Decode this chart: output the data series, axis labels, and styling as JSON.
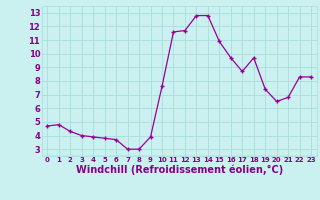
{
  "x": [
    0,
    1,
    2,
    3,
    4,
    5,
    6,
    7,
    8,
    9,
    10,
    11,
    12,
    13,
    14,
    15,
    16,
    17,
    18,
    19,
    20,
    21,
    22,
    23
  ],
  "y": [
    4.7,
    4.8,
    4.3,
    4.0,
    3.9,
    3.8,
    3.7,
    3.0,
    3.0,
    3.9,
    7.6,
    11.6,
    11.7,
    12.8,
    12.8,
    10.9,
    9.7,
    8.7,
    9.7,
    7.4,
    6.5,
    6.8,
    8.3,
    8.3
  ],
  "line_color": "#990099",
  "marker": "+",
  "bg_color": "#cbf0f0",
  "grid_color": "#aadddd",
  "xlabel": "Windchill (Refroidissement éolien,°C)",
  "xlabel_fontsize": 7,
  "label_color": "#880088",
  "xtick_labels": [
    "0",
    "1",
    "2",
    "3",
    "4",
    "5",
    "6",
    "7",
    "8",
    "9",
    "10",
    "11",
    "12",
    "13",
    "14",
    "15",
    "16",
    "17",
    "18",
    "19",
    "20",
    "21",
    "22",
    "23"
  ],
  "ytick_labels": [
    "3",
    "4",
    "5",
    "6",
    "7",
    "8",
    "9",
    "10",
    "11",
    "12",
    "13"
  ],
  "ytick_vals": [
    3,
    4,
    5,
    6,
    7,
    8,
    9,
    10,
    11,
    12,
    13
  ],
  "ylim": [
    2.5,
    13.5
  ],
  "xlim": [
    -0.5,
    23.5
  ]
}
